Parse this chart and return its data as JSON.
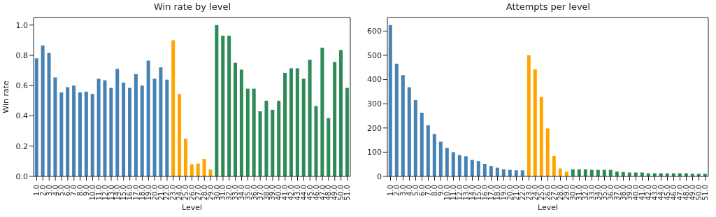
{
  "chart_data": [
    {
      "type": "bar",
      "title": "Win rate by level",
      "xlabel": "Level",
      "ylabel": "Win rate",
      "categories": [
        "1.0",
        "2.0",
        "3.0",
        "4.0",
        "5.0",
        "6.0",
        "7.0",
        "8.0",
        "9.0",
        "10.0",
        "11.0",
        "12.0",
        "13.0",
        "14.0",
        "15.0",
        "16.0",
        "17.0",
        "18.0",
        "19.0",
        "20.0",
        "21.0",
        "22.0",
        "23.0",
        "24.0",
        "25.0",
        "26.0",
        "27.0",
        "28.0",
        "29.0",
        "30.0",
        "31.0",
        "32.0",
        "33.0",
        "34.0",
        "35.0",
        "36.0",
        "37.0",
        "38.0",
        "39.0",
        "40.0",
        "41.0",
        "42.0",
        "43.0",
        "44.0",
        "45.0",
        "46.0",
        "47.0",
        "48.0",
        "49.0",
        "50.0",
        "51.0"
      ],
      "values": [
        0.78,
        0.865,
        0.815,
        0.655,
        0.555,
        0.59,
        0.6,
        0.555,
        0.56,
        0.545,
        0.645,
        0.635,
        0.585,
        0.71,
        0.62,
        0.585,
        0.675,
        0.6,
        0.765,
        0.645,
        0.72,
        0.64,
        0.9,
        0.545,
        0.25,
        0.08,
        0.085,
        0.115,
        0.045,
        1.0,
        0.93,
        0.93,
        0.75,
        0.705,
        0.58,
        0.58,
        0.43,
        0.5,
        0.44,
        0.5,
        0.685,
        0.715,
        0.715,
        0.645,
        0.77,
        0.465,
        0.85,
        0.385,
        0.755,
        0.835,
        0.585
      ],
      "colors": [
        "#4682b4",
        "#4682b4",
        "#4682b4",
        "#4682b4",
        "#4682b4",
        "#4682b4",
        "#4682b4",
        "#4682b4",
        "#4682b4",
        "#4682b4",
        "#4682b4",
        "#4682b4",
        "#4682b4",
        "#4682b4",
        "#4682b4",
        "#4682b4",
        "#4682b4",
        "#4682b4",
        "#4682b4",
        "#4682b4",
        "#4682b4",
        "#4682b4",
        "#ffa500",
        "#ffa500",
        "#ffa500",
        "#ffa500",
        "#ffa500",
        "#ffa500",
        "#ffa500",
        "#2e8b57",
        "#2e8b57",
        "#2e8b57",
        "#2e8b57",
        "#2e8b57",
        "#2e8b57",
        "#2e8b57",
        "#2e8b57",
        "#2e8b57",
        "#2e8b57",
        "#2e8b57",
        "#2e8b57",
        "#2e8b57",
        "#2e8b57",
        "#2e8b57",
        "#2e8b57",
        "#2e8b57",
        "#2e8b57",
        "#2e8b57",
        "#2e8b57",
        "#2e8b57",
        "#2e8b57"
      ],
      "ylim": [
        0,
        1.05
      ],
      "yticks": [
        {
          "value": 0,
          "label": "0.0"
        },
        0.2,
        0.4,
        0.6,
        0.8,
        {
          "value": 1,
          "label": "1.0"
        }
      ]
    },
    {
      "type": "bar",
      "title": "Attempts per level",
      "xlabel": "Level",
      "categories": [
        "1.0",
        "2.0",
        "3.0",
        "4.0",
        "5.0",
        "6.0",
        "7.0",
        "8.0",
        "9.0",
        "10.0",
        "11.0",
        "12.0",
        "13.0",
        "14.0",
        "15.0",
        "16.0",
        "17.0",
        "18.0",
        "19.0",
        "20.0",
        "21.0",
        "22.0",
        "23.0",
        "24.0",
        "25.0",
        "26.0",
        "27.0",
        "28.0",
        "29.0",
        "30.0",
        "31.0",
        "32.0",
        "33.0",
        "34.0",
        "35.0",
        "36.0",
        "37.0",
        "38.0",
        "39.0",
        "40.0",
        "41.0",
        "42.0",
        "43.0",
        "44.0",
        "45.0",
        "46.0",
        "47.0",
        "48.0",
        "49.0",
        "50.0",
        "51.0"
      ],
      "values": [
        625,
        465,
        418,
        368,
        315,
        263,
        211,
        175,
        143,
        118,
        100,
        88,
        83,
        68,
        63,
        52,
        43,
        36,
        29,
        27,
        25,
        25,
        500,
        442,
        328,
        198,
        84,
        33,
        20,
        29,
        29,
        29,
        27,
        27,
        27,
        27,
        20,
        18,
        16,
        16,
        16,
        13,
        13,
        13,
        13,
        13,
        13,
        13,
        11,
        11,
        11
      ],
      "colors": [
        "#4682b4",
        "#4682b4",
        "#4682b4",
        "#4682b4",
        "#4682b4",
        "#4682b4",
        "#4682b4",
        "#4682b4",
        "#4682b4",
        "#4682b4",
        "#4682b4",
        "#4682b4",
        "#4682b4",
        "#4682b4",
        "#4682b4",
        "#4682b4",
        "#4682b4",
        "#4682b4",
        "#4682b4",
        "#4682b4",
        "#4682b4",
        "#4682b4",
        "#ffa500",
        "#ffa500",
        "#ffa500",
        "#ffa500",
        "#ffa500",
        "#ffa500",
        "#ffa500",
        "#2e8b57",
        "#2e8b57",
        "#2e8b57",
        "#2e8b57",
        "#2e8b57",
        "#2e8b57",
        "#2e8b57",
        "#2e8b57",
        "#2e8b57",
        "#2e8b57",
        "#2e8b57",
        "#2e8b57",
        "#2e8b57",
        "#2e8b57",
        "#2e8b57",
        "#2e8b57",
        "#2e8b57",
        "#2e8b57",
        "#2e8b57",
        "#2e8b57",
        "#2e8b57",
        "#2e8b57"
      ],
      "ylim": [
        0,
        656
      ],
      "yticks": [
        0,
        100,
        200,
        300,
        400,
        500,
        600
      ]
    }
  ]
}
